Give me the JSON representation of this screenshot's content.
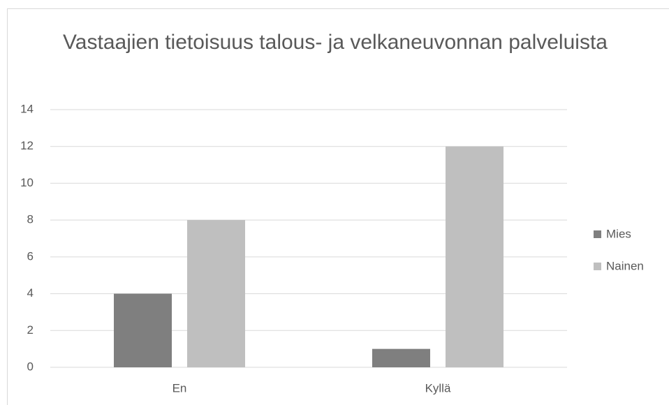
{
  "chart_data": {
    "type": "bar",
    "title": "Vastaajien tietoisuus talous- ja velkaneuvonnan palveluista",
    "categories": [
      "En",
      "Kyllä"
    ],
    "series": [
      {
        "name": "Mies",
        "color": "#7f7f7f",
        "values": [
          4,
          1
        ]
      },
      {
        "name": "Nainen",
        "color": "#bfbfbf",
        "values": [
          8,
          12
        ]
      }
    ],
    "ylim": [
      0,
      14
    ],
    "yticks": [
      0,
      2,
      4,
      6,
      8,
      10,
      12,
      14
    ],
    "grid": true,
    "legend": "right"
  }
}
